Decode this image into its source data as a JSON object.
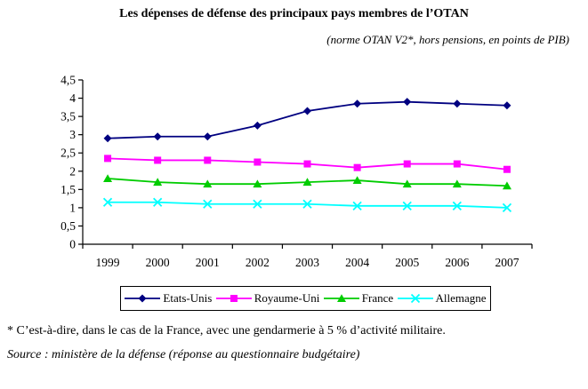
{
  "footnote": "* C’est-à-dire, dans le cas de la France, avec une gendarmerie à 5 % d’activité militaire.",
  "source": "Source : ministère de la défense (réponse au questionnaire budgétaire)",
  "chart_data": {
    "type": "line",
    "title": "Les dépenses de défense des principaux pays membres de l’OTAN",
    "subtitle": "(norme OTAN V2*, hors pensions, en points de PIB)",
    "categories": [
      "1999",
      "2000",
      "2001",
      "2002",
      "2003",
      "2004",
      "2005",
      "2006",
      "2007"
    ],
    "series": [
      {
        "name": "Etats-Unis",
        "color": "#000080",
        "marker": "diamond",
        "values": [
          2.9,
          2.95,
          2.95,
          3.25,
          3.65,
          3.85,
          3.9,
          3.85,
          3.8
        ]
      },
      {
        "name": "Royaume-Uni",
        "color": "#FF00FF",
        "marker": "square",
        "values": [
          2.35,
          2.3,
          2.3,
          2.25,
          2.2,
          2.1,
          2.2,
          2.2,
          2.05
        ]
      },
      {
        "name": "France",
        "color": "#00CC00",
        "marker": "triangle",
        "values": [
          1.8,
          1.7,
          1.65,
          1.65,
          1.7,
          1.75,
          1.65,
          1.65,
          1.6
        ]
      },
      {
        "name": "Allemagne",
        "color": "#00FFFF",
        "marker": "x",
        "values": [
          1.15,
          1.15,
          1.1,
          1.1,
          1.1,
          1.05,
          1.05,
          1.05,
          1.0
        ]
      }
    ],
    "ylim": [
      0,
      4.5
    ],
    "ytick_step": 0.5,
    "ytick_labels": [
      "0",
      "0,5",
      "1",
      "1,5",
      "2",
      "2,5",
      "3",
      "3,5",
      "4",
      "4,5"
    ],
    "xlabel": "",
    "ylabel": "",
    "grid": false,
    "legend_position": "bottom",
    "axis_color": "#000000"
  }
}
